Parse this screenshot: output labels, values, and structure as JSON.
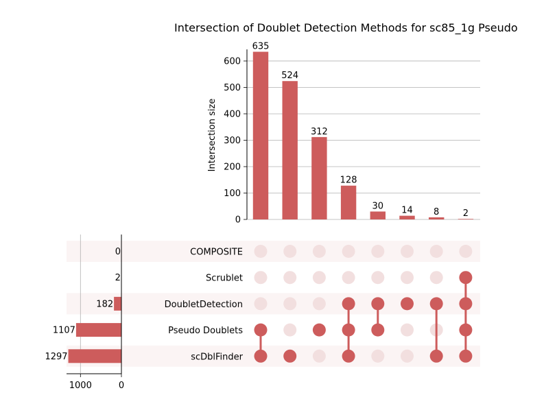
{
  "chart_data": {
    "type": "upset",
    "title": "Intersection of Doublet Detection Methods for sc85_1g Pseudo",
    "ylabel": "Intersection size",
    "ylim": [
      0,
      670
    ],
    "yticks": [
      0,
      100,
      200,
      300,
      400,
      500,
      600
    ],
    "grid": true,
    "sets": [
      {
        "name": "COMPOSITE",
        "size": 0
      },
      {
        "name": "Scrublet",
        "size": 2
      },
      {
        "name": "DoubletDetection",
        "size": 182
      },
      {
        "name": "Pseudo Doublets",
        "size": 1107
      },
      {
        "name": "scDblFinder",
        "size": 1297
      }
    ],
    "set_size_xlim": [
      1340,
      0
    ],
    "set_size_ticks": [
      1000,
      0
    ],
    "intersections": [
      {
        "size": 635,
        "members": [
          "Pseudo Doublets",
          "scDblFinder"
        ]
      },
      {
        "size": 524,
        "members": [
          "scDblFinder"
        ]
      },
      {
        "size": 312,
        "members": [
          "Pseudo Doublets"
        ]
      },
      {
        "size": 128,
        "members": [
          "DoubletDetection",
          "Pseudo Doublets",
          "scDblFinder"
        ]
      },
      {
        "size": 30,
        "members": [
          "DoubletDetection",
          "Pseudo Doublets"
        ]
      },
      {
        "size": 14,
        "members": [
          "DoubletDetection"
        ]
      },
      {
        "size": 8,
        "members": [
          "DoubletDetection",
          "scDblFinder"
        ]
      },
      {
        "size": 2,
        "members": [
          "Scrublet",
          "DoubletDetection",
          "Pseudo Doublets",
          "scDblFinder"
        ]
      }
    ],
    "colors": {
      "bar": "#cd5c5c",
      "dot_active": "#cd5c5c",
      "dot_inactive": "#f2dfdf",
      "row_shade": "#fbf4f4",
      "grid": "#b0b0b0"
    }
  }
}
